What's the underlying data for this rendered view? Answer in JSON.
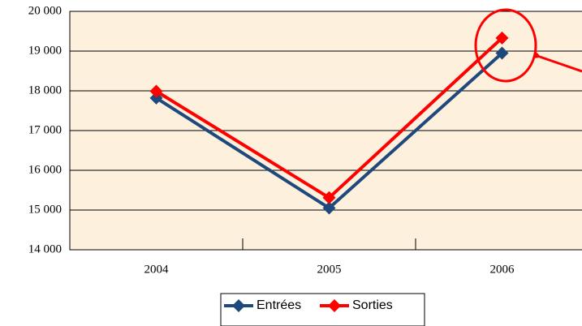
{
  "chart_data": {
    "type": "line",
    "categories": [
      "2004",
      "2005",
      "2006"
    ],
    "series": [
      {
        "name": "Entrées",
        "color": "#1f497d",
        "values": [
          17820,
          15050,
          18950
        ]
      },
      {
        "name": "Sorties",
        "color": "#ff0000",
        "values": [
          17990,
          15310,
          19330
        ]
      }
    ],
    "ylim": [
      14000,
      20000
    ],
    "yticks": [
      {
        "value": 14000,
        "label": "14 000"
      },
      {
        "value": 15000,
        "label": "15 000"
      },
      {
        "value": 16000,
        "label": "16 000"
      },
      {
        "value": 17000,
        "label": "17 000"
      },
      {
        "value": 18000,
        "label": "18 000"
      },
      {
        "value": 19000,
        "label": "19 000"
      },
      {
        "value": 20000,
        "label": "20 000"
      }
    ],
    "grid": true
  }
}
